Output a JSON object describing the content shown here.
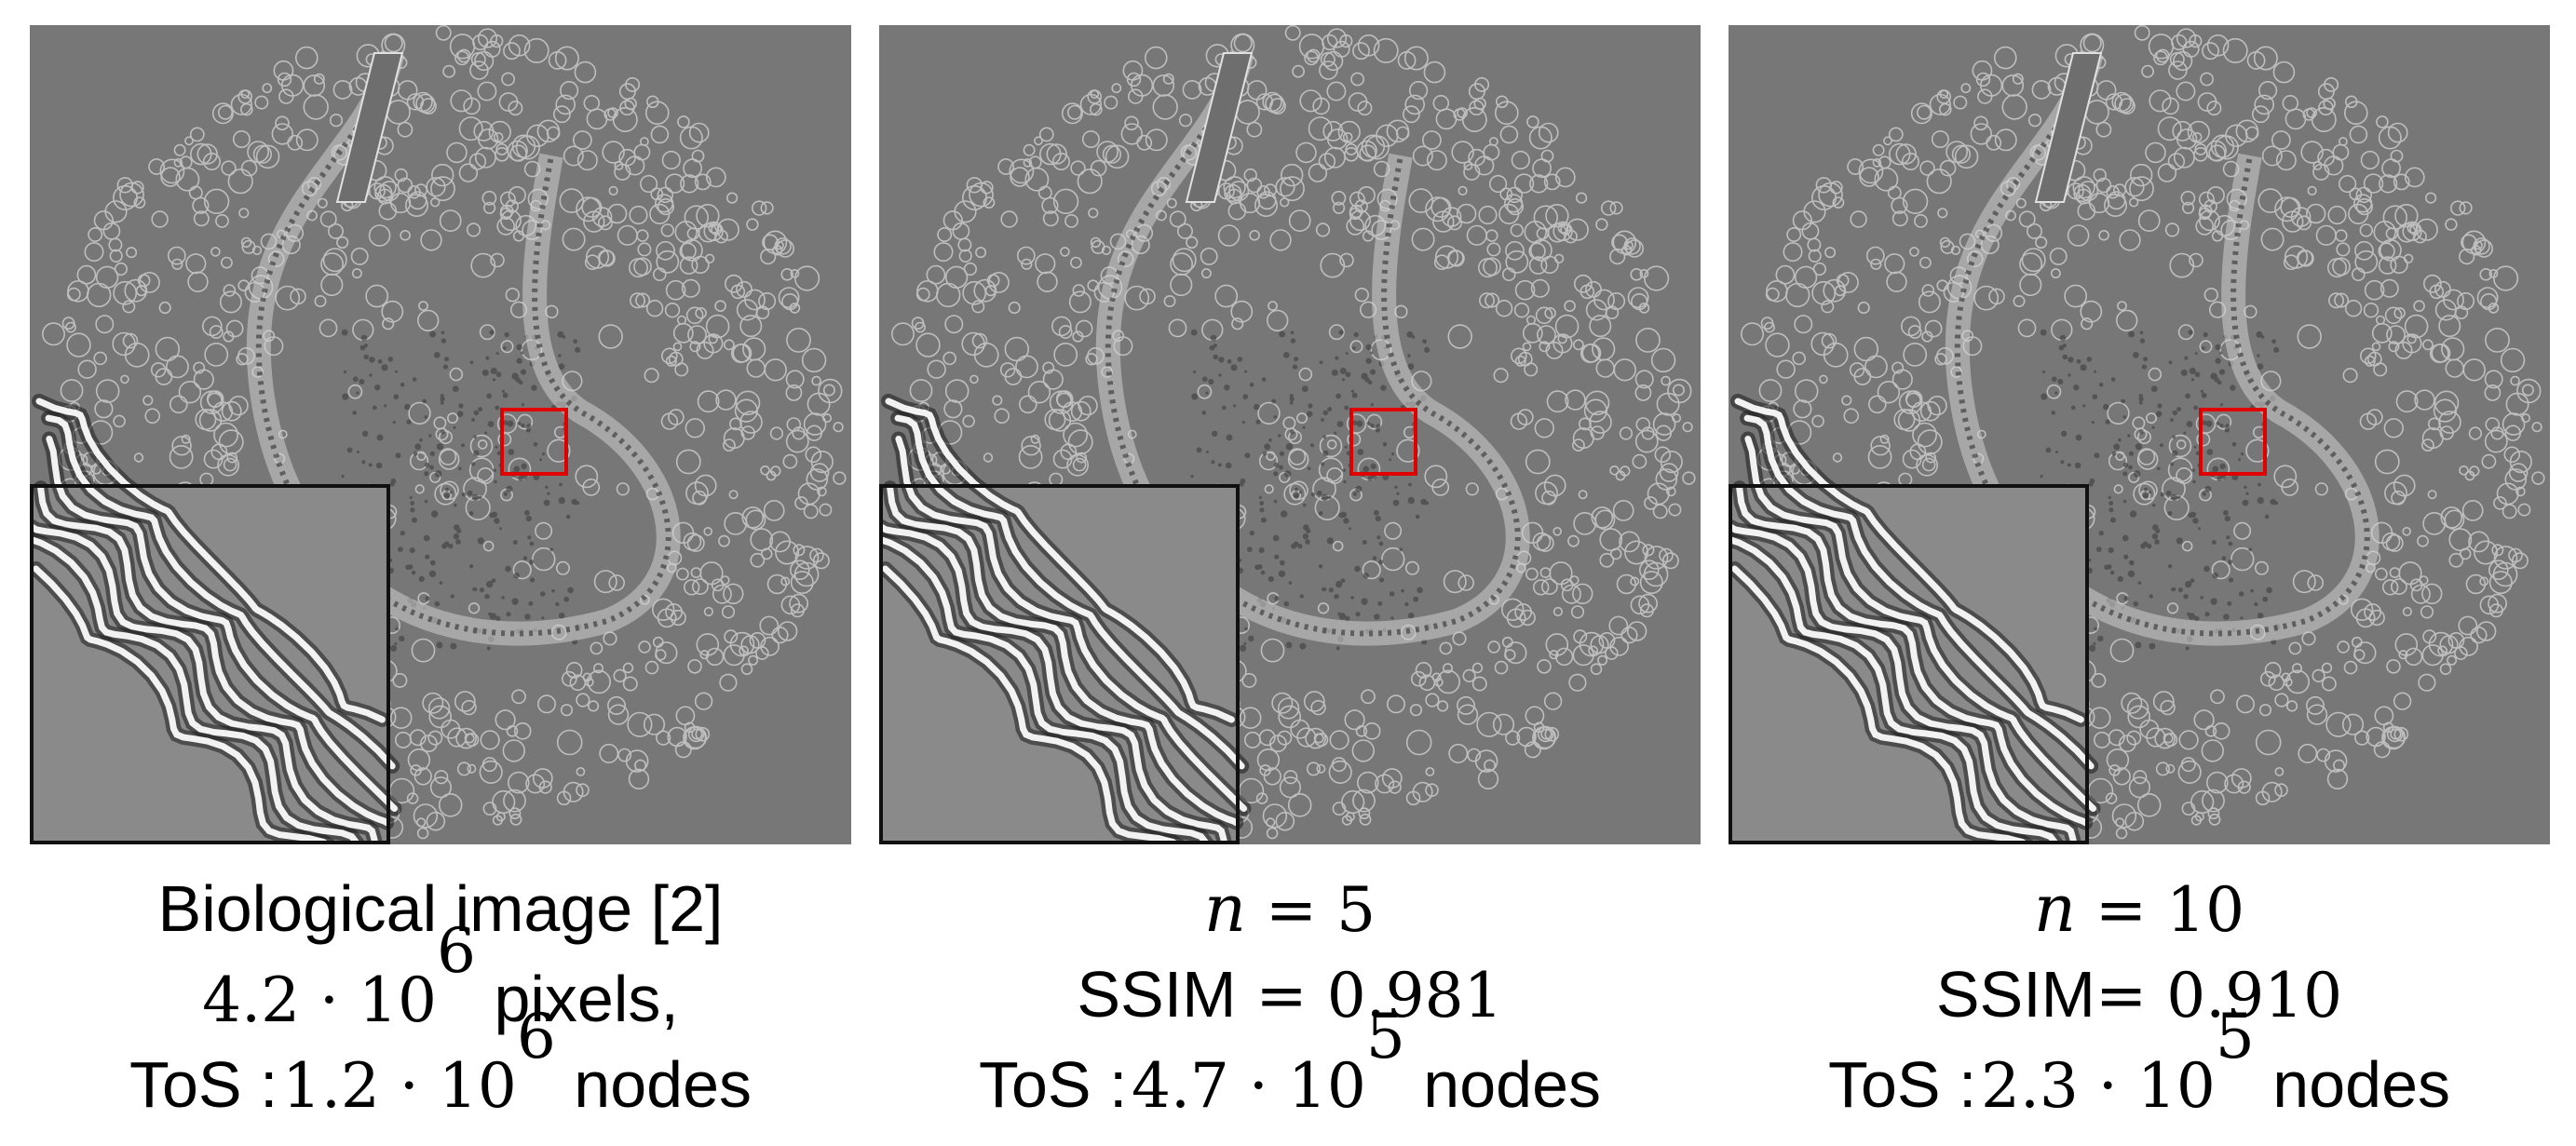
{
  "panels": [
    {
      "id": "original",
      "caption": {
        "line1": {
          "text": "Biological image [2]"
        },
        "line2": {
          "math": "4.2 · 10",
          "exp": "6",
          "text": " pixels,"
        },
        "line3": {
          "label": "ToS :",
          "math": "1.2 · 10",
          "exp": "6",
          "text": " nodes"
        }
      }
    },
    {
      "id": "n5",
      "caption": {
        "line1": {
          "var": "n",
          "eq": " = 5"
        },
        "line2": {
          "label": "SSIM",
          "eq": " = 0.981"
        },
        "line3": {
          "label": "ToS :",
          "math": "4.7 · 10",
          "exp": "5",
          "text": " nodes"
        }
      }
    },
    {
      "id": "n10",
      "caption": {
        "line1": {
          "var": "n",
          "eq": " = 10"
        },
        "line2": {
          "label": "SSIM",
          "eq": "= 0.910"
        },
        "line3": {
          "label": "ToS :",
          "math": "2.3 · 10",
          "exp": "5",
          "text": " nodes"
        }
      }
    }
  ],
  "colors": {
    "background": "#777777",
    "zoom_box": "#e00000",
    "inset_border": "#111111"
  }
}
